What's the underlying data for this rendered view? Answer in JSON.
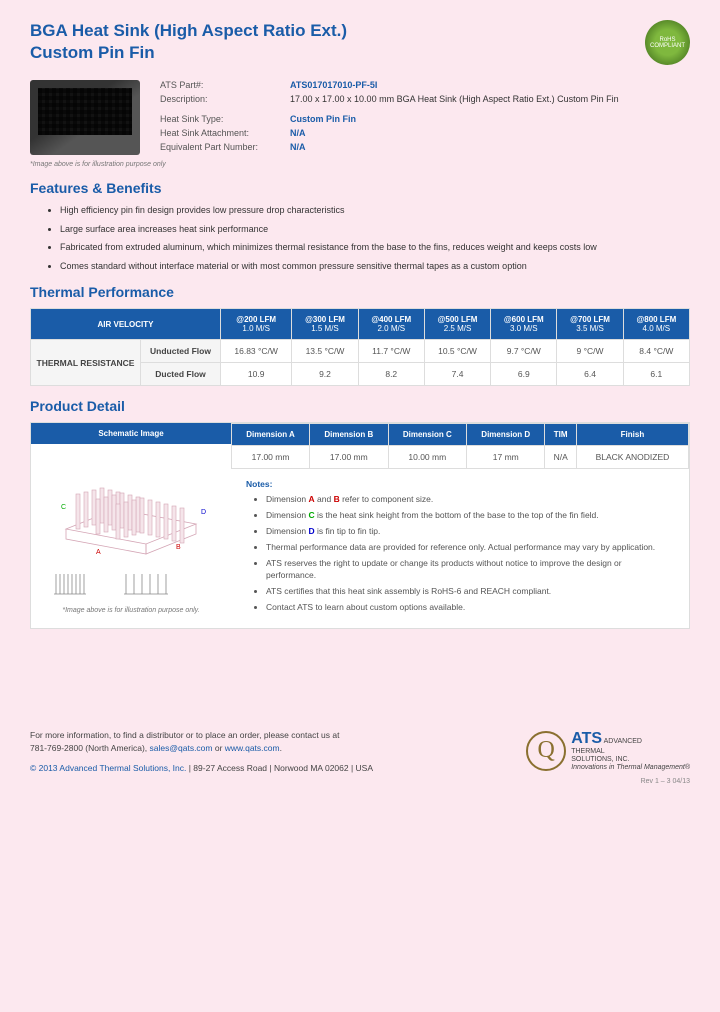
{
  "header": {
    "title_line1": "BGA Heat Sink (High Aspect Ratio Ext.)",
    "title_line2": "Custom Pin Fin",
    "rohs": "RoHS COMPLIANT"
  },
  "product": {
    "fields": [
      {
        "label": "ATS Part#:",
        "value": "ATS017017010-PF-5I",
        "blue": true
      },
      {
        "label": "Description:",
        "value": "17.00 x 17.00 x 10.00 mm  BGA Heat Sink (High Aspect Ratio Ext.) Custom Pin Fin",
        "blue": false
      },
      {
        "label": "Heat Sink Type:",
        "value": "Custom Pin Fin",
        "blue": true
      },
      {
        "label": "Heat Sink Attachment:",
        "value": "N/A",
        "blue": true
      },
      {
        "label": "Equivalent Part Number:",
        "value": "N/A",
        "blue": true
      }
    ],
    "img_caption": "*Image above is for illustration purpose only"
  },
  "features": {
    "title": "Features & Benefits",
    "items": [
      "High efficiency pin fin design provides low pressure drop characteristics",
      "Large surface area increases heat sink performance",
      "Fabricated from extruded aluminum, which minimizes thermal resistance from the base to the fins, reduces weight and keeps costs low",
      "Comes standard without interface material or with most common pressure sensitive thermal tapes as a custom option"
    ]
  },
  "thermal": {
    "title": "Thermal Performance",
    "air_velocity_label": "AIR VELOCITY",
    "resistance_label": "THERMAL RESISTANCE",
    "columns": [
      {
        "top": "@200 LFM",
        "sub": "1.0 M/S"
      },
      {
        "top": "@300 LFM",
        "sub": "1.5 M/S"
      },
      {
        "top": "@400 LFM",
        "sub": "2.0 M/S"
      },
      {
        "top": "@500 LFM",
        "sub": "2.5 M/S"
      },
      {
        "top": "@600 LFM",
        "sub": "3.0 M/S"
      },
      {
        "top": "@700 LFM",
        "sub": "3.5 M/S"
      },
      {
        "top": "@800 LFM",
        "sub": "4.0 M/S"
      }
    ],
    "rows": [
      {
        "label": "Unducted Flow",
        "values": [
          "16.83 °C/W",
          "13.5 °C/W",
          "11.7 °C/W",
          "10.5 °C/W",
          "9.7 °C/W",
          "9 °C/W",
          "8.4 °C/W"
        ]
      },
      {
        "label": "Ducted Flow",
        "values": [
          "10.9",
          "9.2",
          "8.2",
          "7.4",
          "6.9",
          "6.4",
          "6.1"
        ]
      }
    ]
  },
  "detail": {
    "title": "Product Detail",
    "schematic_header": "Schematic Image",
    "schematic_caption": "*Image above is for illustration purpose only.",
    "columns": [
      "Dimension A",
      "Dimension B",
      "Dimension C",
      "Dimension D",
      "TIM",
      "Finish"
    ],
    "values": [
      "17.00 mm",
      "17.00 mm",
      "10.00 mm",
      "17 mm",
      "N/A",
      "BLACK ANODIZED"
    ],
    "notes_title": "Notes:",
    "notes": [
      "Dimension <span class='dim-a'>A</span> and <span class='dim-b'>B</span> refer to component size.",
      "Dimension <span class='dim-c'>C</span> is the heat sink height from the bottom of the base to the top of the fin field.",
      "Dimension <span class='dim-d'>D</span> is fin tip to fin tip.",
      "Thermal performance data are provided for reference only. Actual performance may vary by application.",
      "ATS reserves the right to update or change its products without notice to improve the design or performance.",
      "ATS certifies that this heat sink assembly is RoHS-6 and REACH compliant.",
      "Contact ATS to learn about custom options available."
    ]
  },
  "footer": {
    "contact1": "For more information, to find a distributor or to place an order, please contact us at",
    "contact2": "781-769-2800 (North America), ",
    "email": "sales@qats.com",
    "or": " or ",
    "web": "www.qats.com",
    "copyright": "© 2013 Advanced Thermal Solutions, Inc.",
    "address": " | 89-27 Access Road | Norwood MA  02062 | USA",
    "company1": "ADVANCED",
    "company2": "THERMAL",
    "company3": "SOLUTIONS, INC.",
    "tagline": "Innovations in Thermal Management®",
    "rev": "Rev 1 – 3  04/13"
  }
}
